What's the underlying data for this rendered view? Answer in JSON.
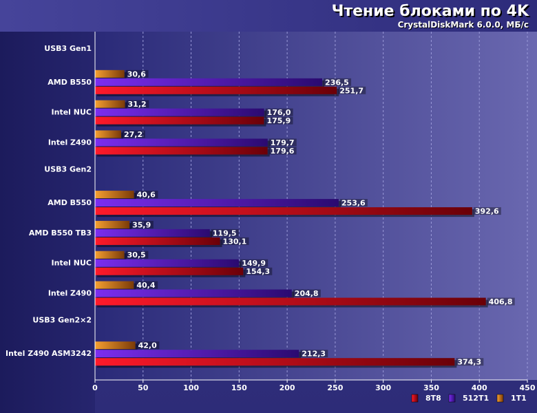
{
  "chart_data": {
    "type": "bar",
    "orientation": "horizontal",
    "title": "Чтение блоками по 4K",
    "subtitle": "CrystalDiskMark 6.0.0, МБ/с",
    "xlim": [
      0,
      450
    ],
    "x_ticks": [
      0,
      50,
      100,
      150,
      200,
      250,
      300,
      350,
      400,
      450
    ],
    "grid": true,
    "legend_position": "bottom-right",
    "categories": [
      "USB3 Gen1",
      "AMD B550",
      "Intel NUC",
      "Intel Z490",
      "USB3 Gen2",
      "AMD B550",
      "AMD B550 TB3",
      "Intel NUC",
      "Intel Z490",
      "USB3 Gen2×2",
      "Intel Z490 ASM3242"
    ],
    "series": [
      {
        "name": "1T1",
        "color": "#e87d10",
        "values": [
          null,
          30.6,
          31.2,
          27.2,
          null,
          40.6,
          35.9,
          30.5,
          40.4,
          null,
          42.0
        ]
      },
      {
        "name": "512T1",
        "color": "#6a1ed8",
        "values": [
          null,
          236.5,
          176.0,
          179.7,
          null,
          253.6,
          119.5,
          149.9,
          204.8,
          null,
          212.3
        ]
      },
      {
        "name": "8T8",
        "color": "#e01020",
        "values": [
          null,
          251.7,
          175.9,
          179.6,
          null,
          392.6,
          130.1,
          154.3,
          406.8,
          null,
          374.3
        ]
      }
    ],
    "value_labels": [
      [
        null,
        "30,6",
        "31,2",
        "27,2",
        null,
        "40,6",
        "35,9",
        "30,5",
        "40,4",
        null,
        "42,0"
      ],
      [
        null,
        "236,5",
        "176,0",
        "179,7",
        null,
        "253,6",
        "119,5",
        "149,9",
        "204,8",
        null,
        "212,3"
      ],
      [
        null,
        "251,7",
        "175,9",
        "179,6",
        null,
        "392,6",
        "130,1",
        "154,3",
        "406,8",
        null,
        "374,3"
      ]
    ],
    "legend_order": [
      "8T8",
      "512T1",
      "1T1"
    ]
  }
}
